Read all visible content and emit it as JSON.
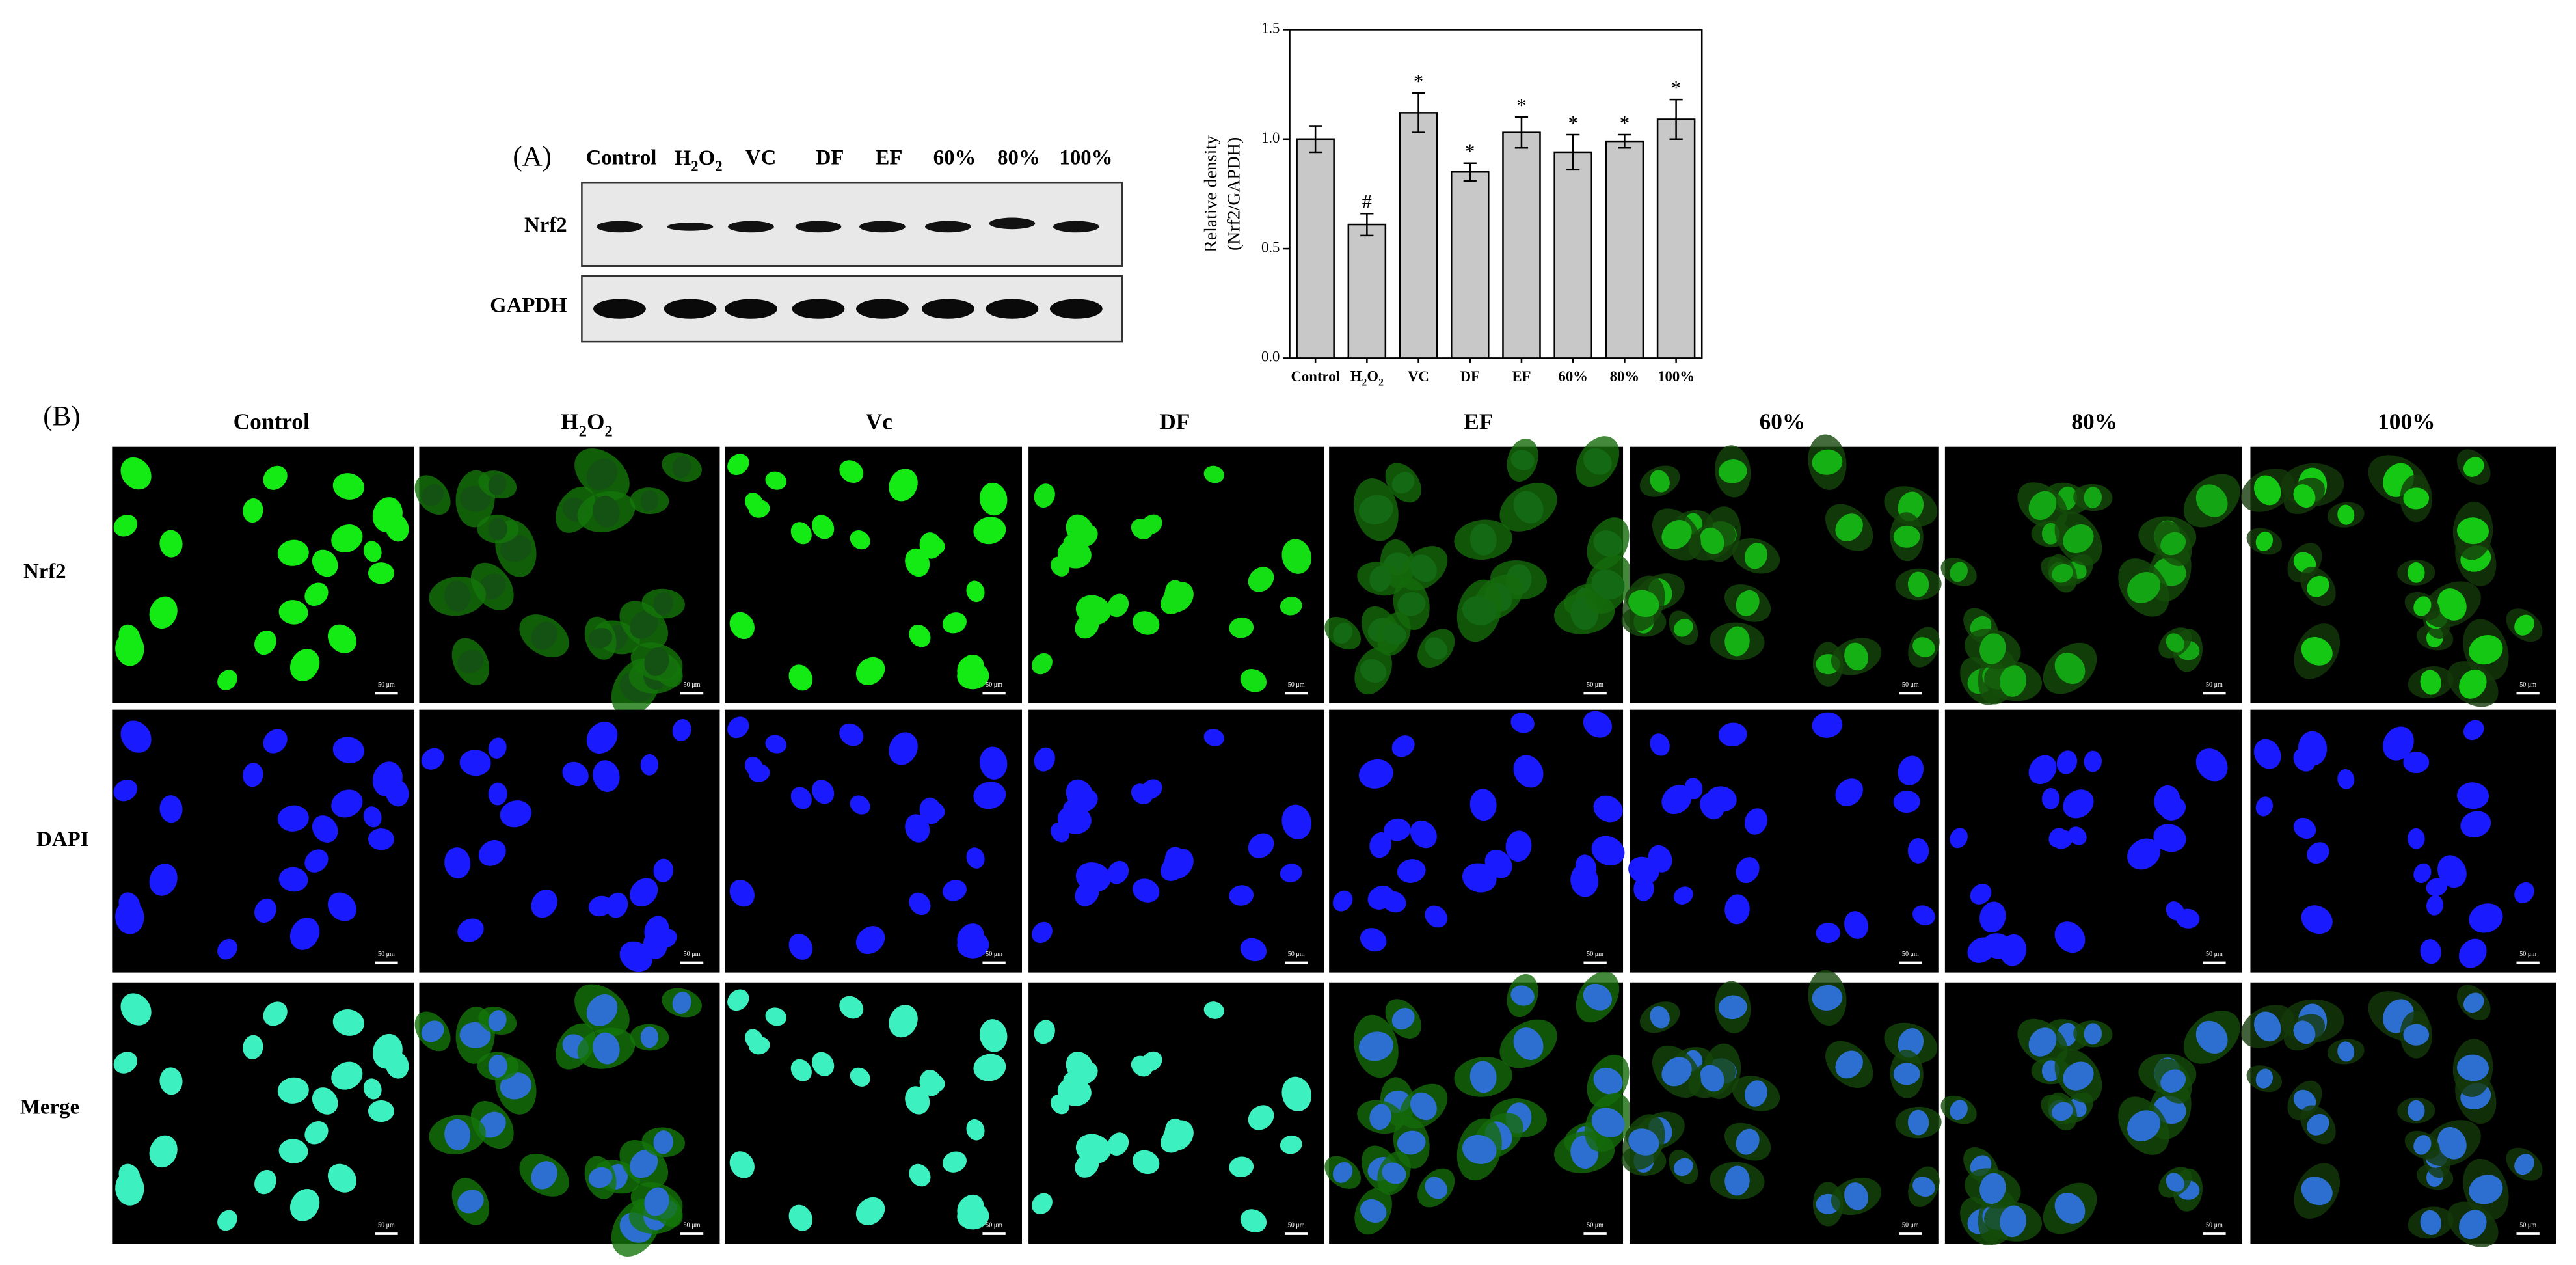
{
  "figure": {
    "panel_a": "(A)",
    "panel_b": "(B)",
    "blot": {
      "lanes": [
        "Control",
        "H2O2",
        "VC",
        "DF",
        "EF",
        "60%",
        "80%",
        "100%"
      ],
      "rows": [
        "Nrf2",
        "GAPDH"
      ]
    },
    "imaging": {
      "columns": [
        "Control",
        "H2O2",
        "Vc",
        "DF",
        "EF",
        "60%",
        "80%",
        "100%"
      ],
      "rows": [
        "Nrf2",
        "DAPI",
        "Merge"
      ],
      "scale_bar": "50 μm"
    }
  },
  "chart_data": {
    "type": "bar",
    "y_label": [
      "Relative density",
      "(Nrf2/GAPDH)"
    ],
    "categories": [
      "Control",
      "H2O2",
      "VC",
      "DF",
      "EF",
      "60%",
      "80%",
      "100%"
    ],
    "values": [
      1.0,
      0.61,
      1.12,
      0.85,
      1.03,
      0.94,
      0.99,
      1.09
    ],
    "errors": [
      0.06,
      0.05,
      0.09,
      0.04,
      0.07,
      0.08,
      0.03,
      0.09
    ],
    "annotations": [
      null,
      "#",
      "*",
      "*",
      "*",
      "*",
      "*",
      "*"
    ],
    "color": "#c8c8c8",
    "ylim": [
      0,
      1.5
    ],
    "yticks": [
      {
        "value": 0,
        "label": "0.0"
      },
      {
        "value": 0.5,
        "label": "0.5"
      },
      {
        "value": 1,
        "label": "1.0"
      },
      {
        "value": 1.5,
        "label": "1.5"
      }
    ]
  }
}
